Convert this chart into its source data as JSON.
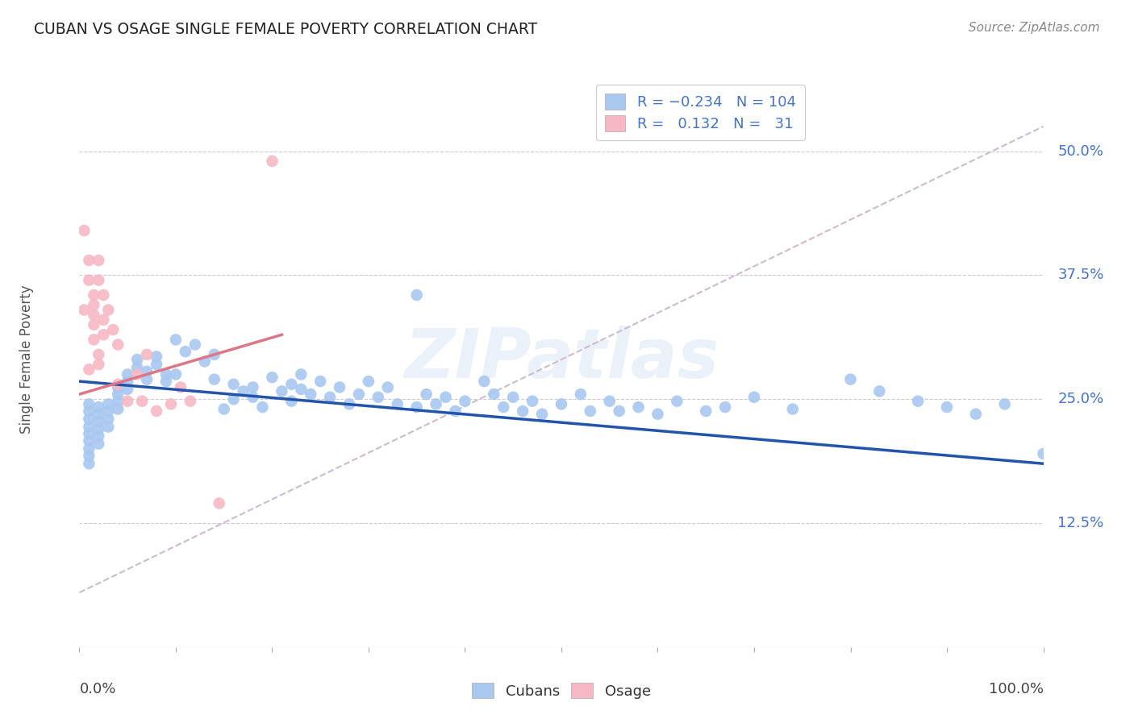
{
  "title": "CUBAN VS OSAGE SINGLE FEMALE POVERTY CORRELATION CHART",
  "source": "Source: ZipAtlas.com",
  "ylabel": "Single Female Poverty",
  "ytick_labels": [
    "12.5%",
    "25.0%",
    "37.5%",
    "50.0%"
  ],
  "ytick_values": [
    0.125,
    0.25,
    0.375,
    0.5
  ],
  "xlim": [
    0.0,
    1.0
  ],
  "ylim": [
    0.0,
    0.58
  ],
  "watermark": "ZIPatlas",
  "cubans_color": "#a8c8f0",
  "osage_color": "#f5b8c4",
  "cubans_line_color": "#2255aa",
  "osage_line_color": "#dd7788",
  "ref_line_color": "#ccbbcc",
  "cubans_scatter_x": [
    0.01,
    0.01,
    0.01,
    0.01,
    0.01,
    0.01,
    0.01,
    0.01,
    0.01,
    0.02,
    0.02,
    0.02,
    0.02,
    0.02,
    0.02,
    0.03,
    0.03,
    0.03,
    0.03,
    0.04,
    0.04,
    0.04,
    0.04,
    0.05,
    0.05,
    0.05,
    0.06,
    0.06,
    0.07,
    0.07,
    0.08,
    0.08,
    0.09,
    0.09,
    0.1,
    0.1,
    0.11,
    0.12,
    0.13,
    0.14,
    0.14,
    0.15,
    0.16,
    0.16,
    0.17,
    0.18,
    0.18,
    0.19,
    0.2,
    0.21,
    0.22,
    0.22,
    0.23,
    0.23,
    0.24,
    0.25,
    0.26,
    0.27,
    0.28,
    0.29,
    0.3,
    0.31,
    0.32,
    0.33,
    0.35,
    0.35,
    0.36,
    0.37,
    0.38,
    0.39,
    0.4,
    0.42,
    0.43,
    0.44,
    0.45,
    0.46,
    0.47,
    0.48,
    0.5,
    0.52,
    0.53,
    0.55,
    0.56,
    0.58,
    0.6,
    0.62,
    0.65,
    0.67,
    0.7,
    0.74,
    0.8,
    0.83,
    0.87,
    0.9,
    0.93,
    0.96,
    1.0
  ],
  "cubans_scatter_y": [
    0.245,
    0.238,
    0.23,
    0.222,
    0.215,
    0.208,
    0.2,
    0.193,
    0.185,
    0.242,
    0.235,
    0.228,
    0.22,
    0.213,
    0.205,
    0.245,
    0.238,
    0.23,
    0.222,
    0.248,
    0.24,
    0.255,
    0.262,
    0.268,
    0.26,
    0.275,
    0.282,
    0.29,
    0.27,
    0.278,
    0.285,
    0.293,
    0.268,
    0.275,
    0.31,
    0.275,
    0.298,
    0.305,
    0.288,
    0.295,
    0.27,
    0.24,
    0.265,
    0.25,
    0.258,
    0.262,
    0.252,
    0.242,
    0.272,
    0.258,
    0.265,
    0.248,
    0.275,
    0.26,
    0.255,
    0.268,
    0.252,
    0.262,
    0.245,
    0.255,
    0.268,
    0.252,
    0.262,
    0.245,
    0.355,
    0.242,
    0.255,
    0.245,
    0.252,
    0.238,
    0.248,
    0.268,
    0.255,
    0.242,
    0.252,
    0.238,
    0.248,
    0.235,
    0.245,
    0.255,
    0.238,
    0.248,
    0.238,
    0.242,
    0.235,
    0.248,
    0.238,
    0.242,
    0.252,
    0.24,
    0.27,
    0.258,
    0.248,
    0.242,
    0.235,
    0.245,
    0.195
  ],
  "osage_scatter_x": [
    0.005,
    0.005,
    0.01,
    0.01,
    0.01,
    0.015,
    0.015,
    0.015,
    0.015,
    0.015,
    0.02,
    0.02,
    0.02,
    0.02,
    0.025,
    0.025,
    0.025,
    0.03,
    0.035,
    0.04,
    0.04,
    0.05,
    0.06,
    0.065,
    0.07,
    0.08,
    0.095,
    0.105,
    0.115,
    0.145,
    0.2
  ],
  "osage_scatter_y": [
    0.42,
    0.34,
    0.39,
    0.37,
    0.28,
    0.355,
    0.345,
    0.335,
    0.325,
    0.31,
    0.39,
    0.37,
    0.295,
    0.285,
    0.355,
    0.33,
    0.315,
    0.34,
    0.32,
    0.305,
    0.265,
    0.248,
    0.275,
    0.248,
    0.295,
    0.238,
    0.245,
    0.262,
    0.248,
    0.145,
    0.49
  ],
  "cubans_trend_x": [
    0.0,
    1.0
  ],
  "cubans_trend_y": [
    0.268,
    0.185
  ],
  "osage_trend_x": [
    0.0,
    0.21
  ],
  "osage_trend_y": [
    0.255,
    0.315
  ],
  "ref_line_x": [
    0.0,
    1.0
  ],
  "ref_line_y": [
    0.055,
    0.525
  ]
}
